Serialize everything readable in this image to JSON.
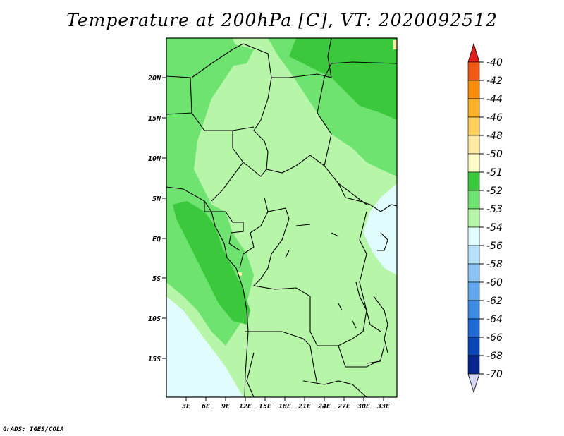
{
  "title": "Temperature at 200hPa [C], VT: 2020092512",
  "credit": "GrADS: IGES/COLA",
  "map": {
    "lat_ticks": [
      "20N",
      "15N",
      "10N",
      "5N",
      "EQ",
      "5S",
      "10S",
      "15S"
    ],
    "lon_ticks": [
      "3E",
      "6E",
      "9E",
      "12E",
      "15E",
      "18E",
      "21E",
      "24E",
      "27E",
      "30E",
      "33E"
    ]
  },
  "colorbar": {
    "labels": [
      "-40",
      "-42",
      "-44",
      "-46",
      "-48",
      "-50",
      "-51",
      "-52",
      "-53",
      "-54",
      "-56",
      "-58",
      "-60",
      "-62",
      "-64",
      "-66",
      "-68",
      "-70"
    ],
    "colors": [
      "#e6301e",
      "#f05a14",
      "#f98c0a",
      "#fbb02a",
      "#fccf5a",
      "#fdeaa0",
      "#fefcc8",
      "#3cc83c",
      "#6fe36f",
      "#b7f6a9",
      "#e0fcfc",
      "#b6e0fa",
      "#8cc4f4",
      "#5fa6ec",
      "#3c8ce4",
      "#1e6ad6",
      "#0a46b8",
      "#06268e",
      "#0a0a64"
    ],
    "top_color": "#e11e1e",
    "bottom_color": "#d7d7f5"
  },
  "fill_colors": {
    "c51": "#3cc83c",
    "c52": "#6fe36f",
    "c53": "#b7f6a9",
    "c54": "#e0fcfc",
    "c48": "#fdeaa0"
  }
}
